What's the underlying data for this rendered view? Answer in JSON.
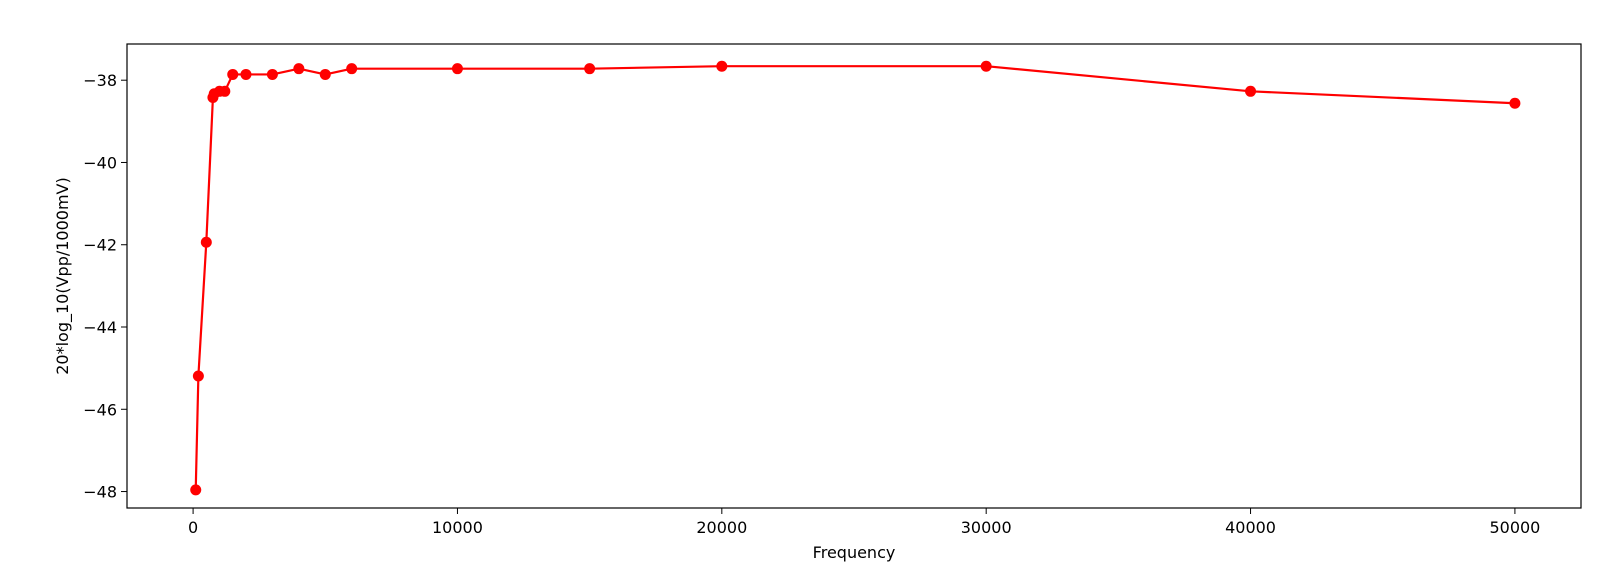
{
  "chart_data": {
    "type": "line",
    "title": "",
    "xlabel": "Frequency",
    "ylabel": "20*log_10(Vpp/1000mV)",
    "xlim": [
      -2500,
      52500
    ],
    "ylim": [
      -48.4,
      -37.12
    ],
    "xticks": [
      0,
      10000,
      20000,
      30000,
      40000,
      50000
    ],
    "xtick_labels": [
      "0",
      "10000",
      "20000",
      "30000",
      "40000",
      "50000"
    ],
    "yticks": [
      -48,
      -46,
      -44,
      -42,
      -40,
      -38
    ],
    "ytick_labels": [
      "−48",
      "−46",
      "−44",
      "−42",
      "−40",
      "−38"
    ],
    "grid": false,
    "color": "#ff0000",
    "marker": "circle",
    "series": [
      {
        "x": [
          100,
          200,
          500,
          750,
          800,
          1000,
          1200,
          1500,
          2000,
          3000,
          4000,
          5000,
          6000,
          10000,
          15000,
          20000,
          30000,
          40000,
          50000
        ],
        "y": [
          -47.96,
          -45.19,
          -41.94,
          -38.42,
          -38.33,
          -38.27,
          -38.27,
          -37.86,
          -37.86,
          -37.86,
          -37.72,
          -37.86,
          -37.72,
          -37.72,
          -37.72,
          -37.66,
          -37.66,
          -38.27,
          -38.56
        ]
      }
    ]
  }
}
